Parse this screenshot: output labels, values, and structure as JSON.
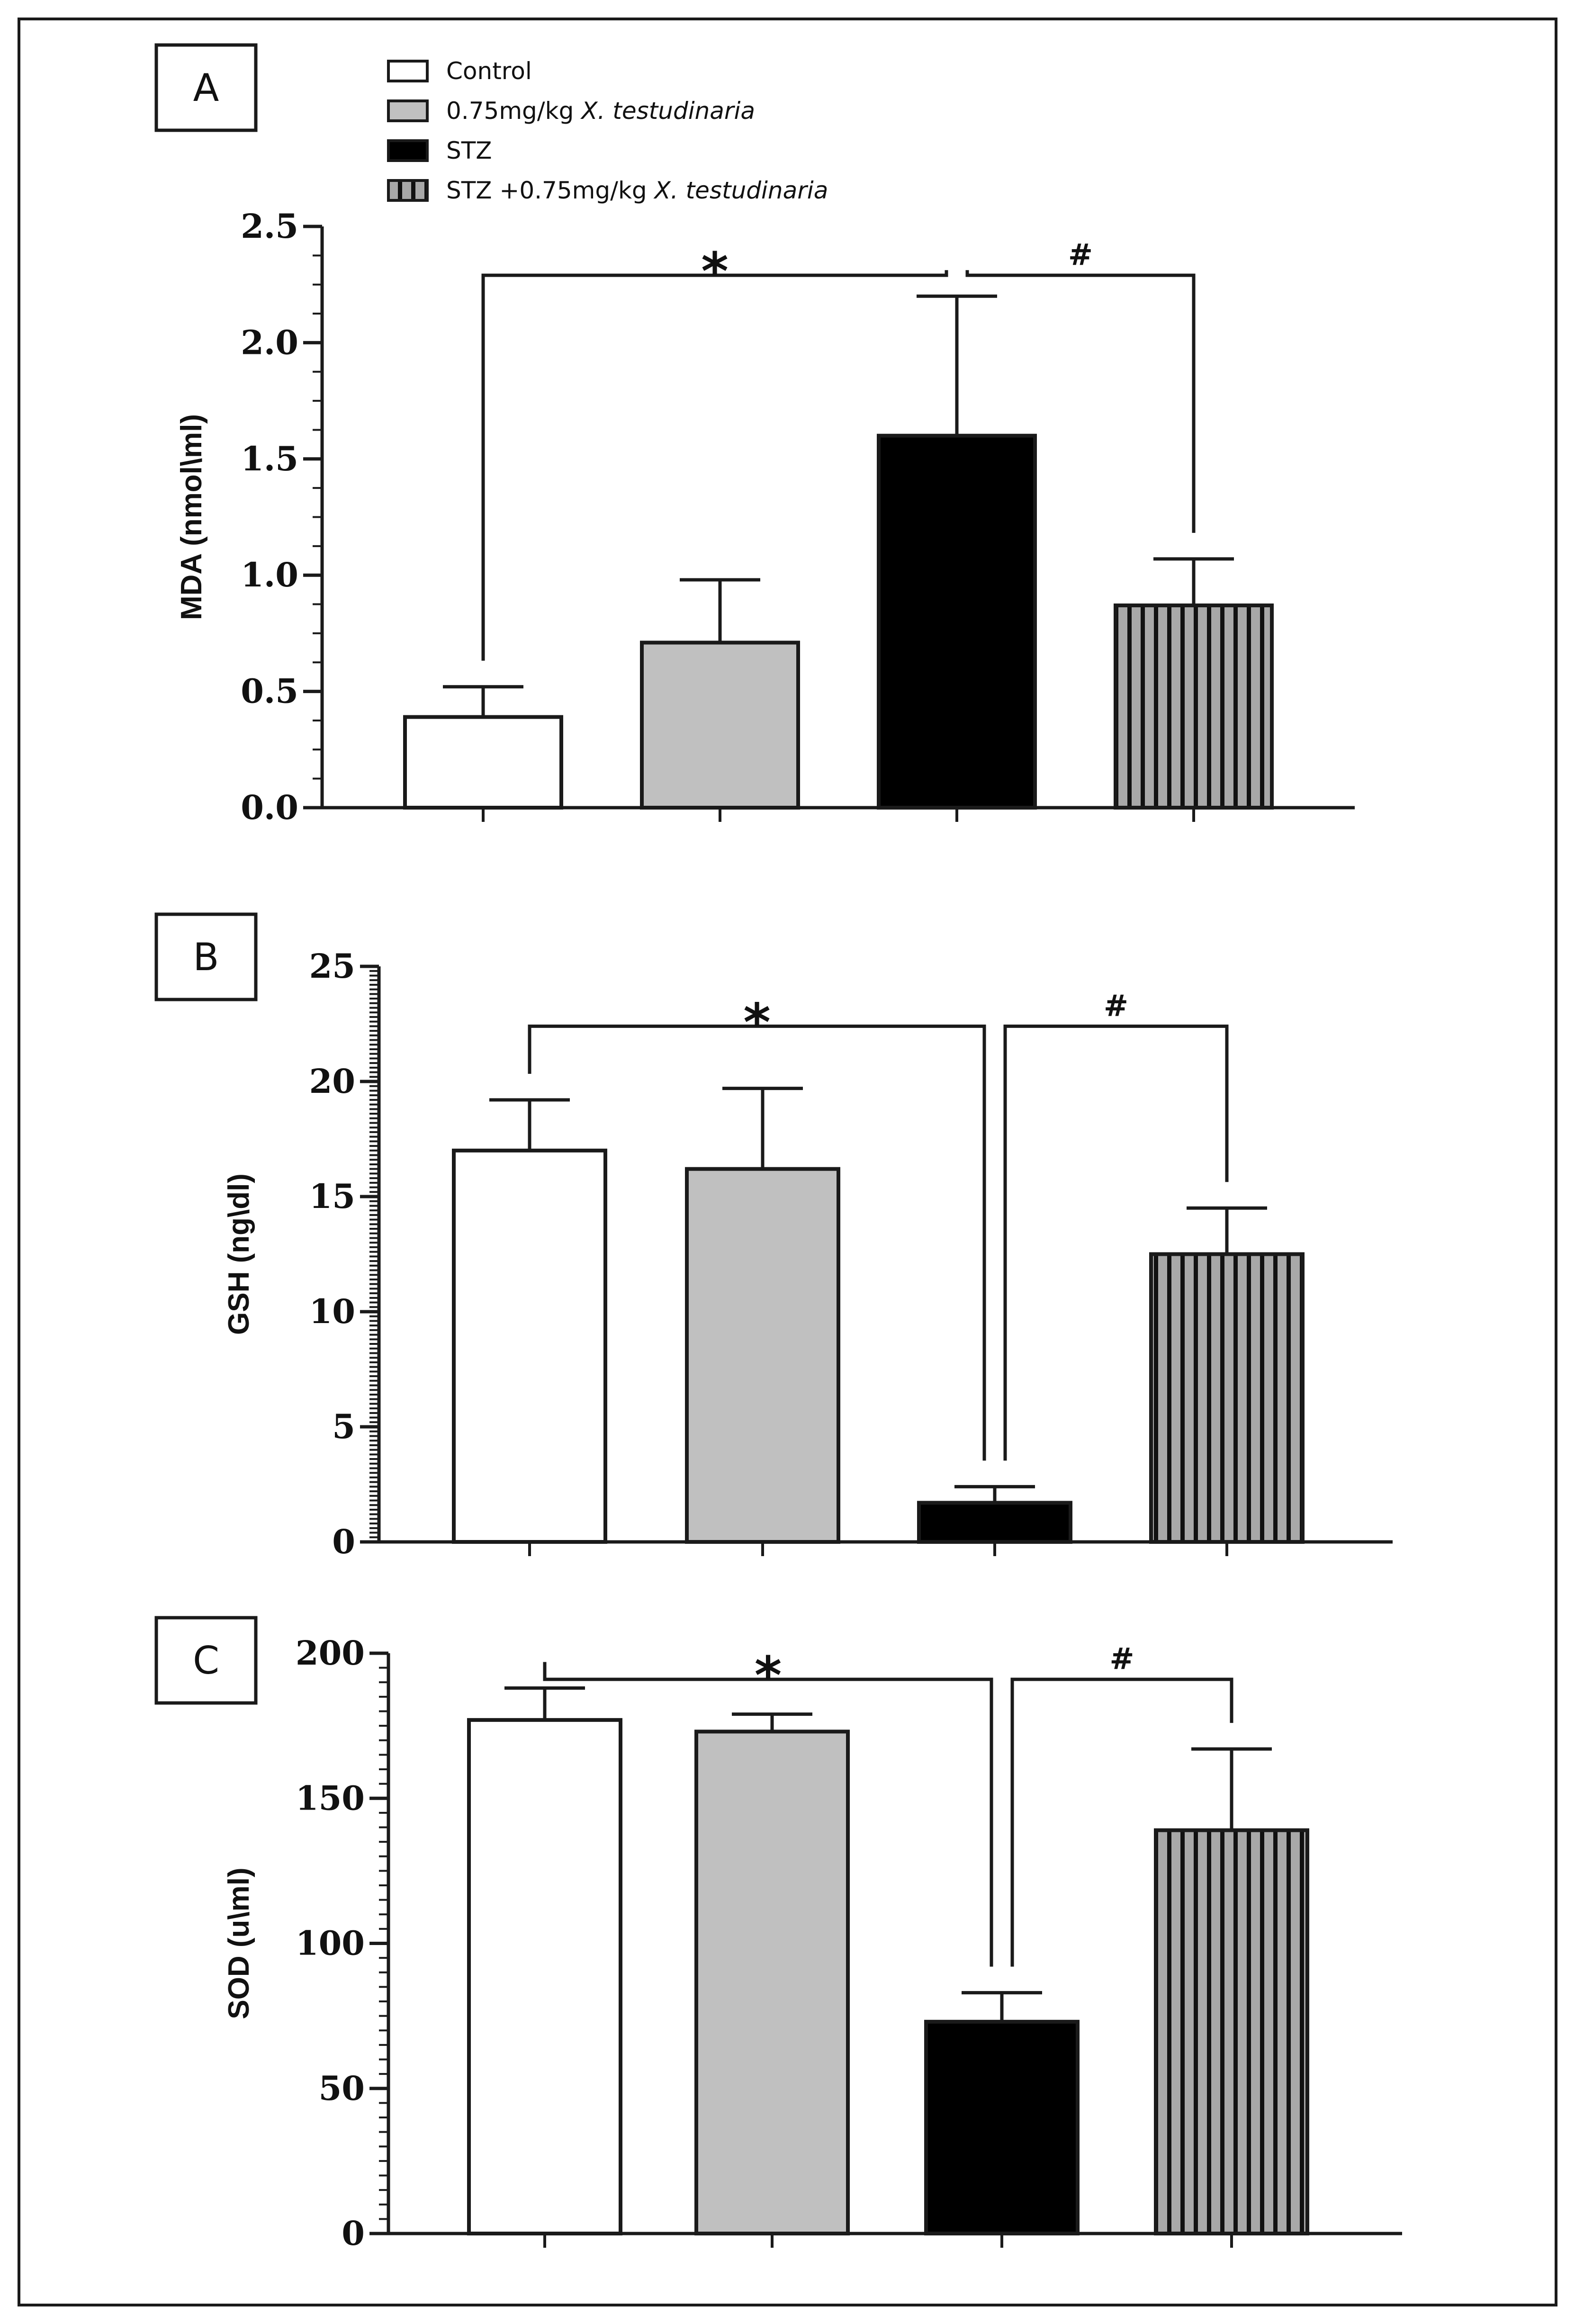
{
  "colors": {
    "control": "#ffffff",
    "xt": "#c0c0c0",
    "stz": "#000000",
    "stz_xt": "#9e9e9e",
    "ink": "#1a1a1a"
  },
  "legend": [
    {
      "key": "control",
      "pattern": "white",
      "prefix": "Control",
      "italic": ""
    },
    {
      "key": "xt",
      "pattern": "gray",
      "prefix": "0.75mg/kg ",
      "italic": "X. testudinaria"
    },
    {
      "key": "stz",
      "pattern": "black",
      "prefix": "STZ",
      "italic": ""
    },
    {
      "key": "stz_xt",
      "pattern": "striped",
      "prefix": "STZ +0.75mg/kg ",
      "italic": "X. testudinaria"
    }
  ],
  "chart_data": [
    {
      "type": "bar",
      "panel_label": "A",
      "ylabel": "MDA (nmol\\ml)",
      "categories": [
        "Control",
        "0.75mg/kg X. testudinaria",
        "STZ",
        "STZ +0.75mg/kg X. testudinaria"
      ],
      "values": [
        0.39,
        0.71,
        1.6,
        0.87
      ],
      "errors": [
        0.13,
        0.27,
        0.6,
        0.2
      ],
      "ylim": [
        0,
        2.5
      ],
      "yticks": [
        0,
        0.5,
        1.0,
        1.5,
        2.0,
        2.5
      ],
      "ytick_labels": [
        "0.0",
        "0.5",
        "1.0",
        "1.5",
        "2.0",
        "2.5"
      ],
      "annotations": [
        {
          "symbol": "*",
          "from": 0,
          "to": 2,
          "y": 2.29
        },
        {
          "symbol": "#",
          "from": 2,
          "to": 3,
          "y": 2.29
        }
      ]
    },
    {
      "type": "bar",
      "panel_label": "B",
      "ylabel": "GSH (ng\\dl)",
      "categories": [
        "Control",
        "0.75mg/kg X. testudinaria",
        "STZ",
        "STZ +0.75mg/kg X. testudinaria"
      ],
      "values": [
        17.0,
        16.2,
        1.7,
        12.5
      ],
      "errors": [
        2.2,
        3.5,
        0.7,
        2.0
      ],
      "ylim": [
        0,
        25
      ],
      "yticks": [
        0,
        5,
        10,
        15,
        20,
        25
      ],
      "ytick_labels": [
        "0",
        "5",
        "10",
        "15",
        "20",
        "25"
      ],
      "annotations": [
        {
          "symbol": "*",
          "from": 0,
          "to": 2,
          "y": 22.4
        },
        {
          "symbol": "#",
          "from": 2,
          "to": 3,
          "y": 22.4
        }
      ]
    },
    {
      "type": "bar",
      "panel_label": "C",
      "ylabel": "SOD (u\\ml)",
      "categories": [
        "Control",
        "0.75mg/kg X. testudinaria",
        "STZ",
        "STZ +0.75mg/kg X. testudinaria"
      ],
      "values": [
        177,
        173,
        73,
        139
      ],
      "errors": [
        11,
        6,
        10,
        28
      ],
      "ylim": [
        0,
        200
      ],
      "yticks": [
        0,
        50,
        100,
        150,
        200
      ],
      "ytick_labels": [
        "0",
        "50",
        "100",
        "150",
        "200"
      ],
      "annotations": [
        {
          "symbol": "*",
          "from": 0,
          "to": 2,
          "y": 191
        },
        {
          "symbol": "#",
          "from": 2,
          "to": 3,
          "y": 191
        }
      ]
    }
  ]
}
